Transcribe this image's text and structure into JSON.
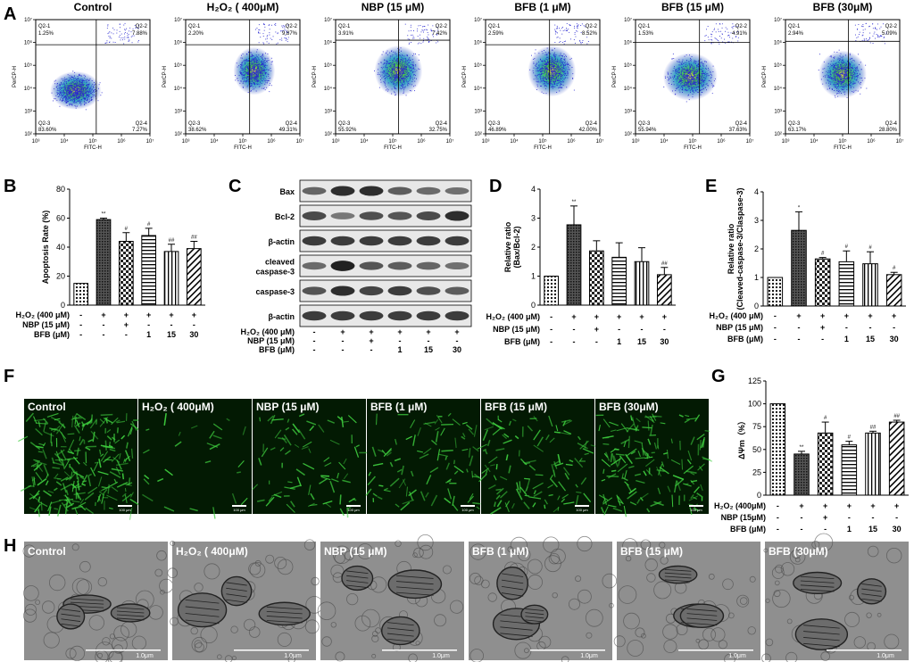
{
  "panel_letters": [
    "A",
    "B",
    "C",
    "D",
    "E",
    "F",
    "G",
    "H"
  ],
  "flow": {
    "xlabel": "FITC-H",
    "ylabel": "PerCP-H",
    "xticks": [
      "10³",
      "10⁴",
      "10⁵",
      "10⁶",
      "10⁷"
    ],
    "yticks": [
      "10²",
      "10³",
      "10⁴",
      "10⁵",
      "10⁶",
      "10⁷"
    ],
    "panels": [
      {
        "title": "Control",
        "q1_label": "Q2-1",
        "q1": "1.25%",
        "q2_label": "Q2-2",
        "q2": "7.88%",
        "q3_label": "Q2-3",
        "q3": "83.60%",
        "q4_label": "Q2-4",
        "q4": "7.27%"
      },
      {
        "title": "H₂O₂ ( 400μM)",
        "q1_label": "Q2-1",
        "q1": "2.20%",
        "q2_label": "Q2-2",
        "q2": "9.87%",
        "q3_label": "Q2-3",
        "q3": "38.62%",
        "q4_label": "Q2-4",
        "q4": "49.31%"
      },
      {
        "title": "NBP (15 μM)",
        "q1_label": "Q2-1",
        "q1": "3.91%",
        "q2_label": "Q2-2",
        "q2": "7.42%",
        "q3_label": "Q2-3",
        "q3": "55.92%",
        "q4_label": "Q2-4",
        "q4": "32.75%"
      },
      {
        "title": "BFB (1 μM)",
        "q1_label": "Q2-1",
        "q1": "2.59%",
        "q2_label": "Q2-2",
        "q2": "8.52%",
        "q3_label": "Q2-3",
        "q3": "46.89%",
        "q4_label": "Q2-4",
        "q4": "42.00%"
      },
      {
        "title": "BFB (15 μM)",
        "q1_label": "Q2-1",
        "q1": "1.53%",
        "q2_label": "Q2-2",
        "q2": "4.91%",
        "q3_label": "Q2-3",
        "q3": "55.94%",
        "q4_label": "Q2-4",
        "q4": "37.63%"
      },
      {
        "title": "BFB (30μM)",
        "q1_label": "Q2-1",
        "q1": "2.94%",
        "q2_label": "Q2-2",
        "q2": "5.09%",
        "q3_label": "Q2-3",
        "q3": "63.17%",
        "q4_label": "Q2-4",
        "q4": "28.80%"
      }
    ]
  },
  "treat_rows": [
    {
      "label": "H₂O₂ (400 μM)",
      "vals": [
        "-",
        "+",
        "+",
        "+",
        "+",
        "+"
      ]
    },
    {
      "label": "NBP (15 μM)",
      "vals": [
        "-",
        "-",
        "+",
        "-",
        "-",
        "-"
      ]
    },
    {
      "label": "BFB (μM)",
      "vals": [
        "-",
        "-",
        "-",
        "1",
        "15",
        "30"
      ]
    }
  ],
  "treat_rows_g": [
    {
      "label": "H₂O₂ (400μM)",
      "vals": [
        "-",
        "+",
        "+",
        "+",
        "+",
        "+"
      ]
    },
    {
      "label": "NBP (15μM)",
      "vals": [
        "-",
        "-",
        "+",
        "-",
        "-",
        "-"
      ]
    },
    {
      "label": "BFB (μM)",
      "vals": [
        "-",
        "-",
        "-",
        "1",
        "15",
        "30"
      ]
    }
  ],
  "chart_data": [
    {
      "type": "bar",
      "panel": "B",
      "ylabel": "Apoptosis Rate (%)",
      "ylim": [
        0,
        80
      ],
      "yticks": [
        0,
        20,
        40,
        60,
        80
      ],
      "values": [
        15,
        59,
        44,
        48,
        37,
        39
      ],
      "errors": [
        0,
        1,
        6,
        5,
        5,
        5
      ],
      "annotations": [
        "",
        "**",
        "#",
        "#",
        "##",
        "##"
      ]
    },
    {
      "type": "bar",
      "panel": "D",
      "ylabel": "Relative ratio (Bax/Bcl-2)",
      "ylim": [
        0,
        4
      ],
      "yticks": [
        0,
        1,
        2,
        3,
        4
      ],
      "values": [
        1,
        2.77,
        1.87,
        1.65,
        1.5,
        1.05
      ],
      "errors": [
        0,
        0.65,
        0.35,
        0.5,
        0.48,
        0.25
      ],
      "annotations": [
        "",
        "**",
        "",
        "",
        "",
        "##"
      ]
    },
    {
      "type": "bar",
      "panel": "E",
      "ylabel": "Relative ratio (Cleaved-caspase-3/Claspase-3)",
      "ylim": [
        0,
        4
      ],
      "yticks": [
        0,
        1,
        2,
        3,
        4
      ],
      "values": [
        1,
        2.65,
        1.65,
        1.55,
        1.48,
        1.1
      ],
      "errors": [
        0,
        0.65,
        0.05,
        0.38,
        0.42,
        0.08
      ],
      "annotations": [
        "",
        "*",
        "#",
        "#",
        "#",
        "#"
      ]
    },
    {
      "type": "bar",
      "panel": "G",
      "ylabel": "ΔΨm（%）",
      "ylim": [
        0,
        125
      ],
      "yticks": [
        0,
        25,
        50,
        75,
        100,
        125
      ],
      "values": [
        100,
        45,
        68,
        55,
        68,
        80
      ],
      "errors": [
        0,
        3,
        12,
        4,
        2,
        2
      ],
      "annotations": [
        "",
        "**",
        "#",
        "#",
        "##",
        "##"
      ]
    }
  ],
  "blot": {
    "rows": [
      {
        "label": "Bax",
        "intensity": [
          0.45,
          0.85,
          0.85,
          0.5,
          0.4,
          0.35
        ]
      },
      {
        "label": "Bcl-2",
        "intensity": [
          0.65,
          0.3,
          0.6,
          0.55,
          0.65,
          0.85
        ]
      },
      {
        "label": "β-actin",
        "intensity": [
          0.75,
          0.75,
          0.75,
          0.75,
          0.75,
          0.75
        ]
      },
      {
        "label": "cleaved caspase-3",
        "intensity": [
          0.4,
          0.95,
          0.55,
          0.5,
          0.45,
          0.35
        ]
      },
      {
        "label": "caspase-3",
        "intensity": [
          0.55,
          0.85,
          0.7,
          0.75,
          0.6,
          0.5
        ]
      },
      {
        "label": "β-actin",
        "intensity": [
          0.75,
          0.75,
          0.75,
          0.75,
          0.75,
          0.75
        ]
      }
    ]
  },
  "fluor": {
    "titles": [
      "Control",
      "H₂O₂ ( 400μM)",
      "NBP (15 μM)",
      "BFB (1 μM)",
      "BFB (15 μM)",
      "BFB (30μM)"
    ],
    "density": [
      0.95,
      0.1,
      0.3,
      0.35,
      0.45,
      0.6
    ],
    "scale": "100 μm"
  },
  "tem": {
    "titles": [
      "Control",
      "H₂O₂ ( 400μM)",
      "NBP (15 μM)",
      "BFB (1 μM)",
      "BFB (15 μM)",
      "BFB (30μM)"
    ],
    "scale": "1.0μm"
  },
  "colors": {
    "fluor_bg": "#031a03",
    "fluor_green": "#3fcf3f",
    "tem_bg": "#8f8f8f",
    "band": "#1a1a1a"
  }
}
